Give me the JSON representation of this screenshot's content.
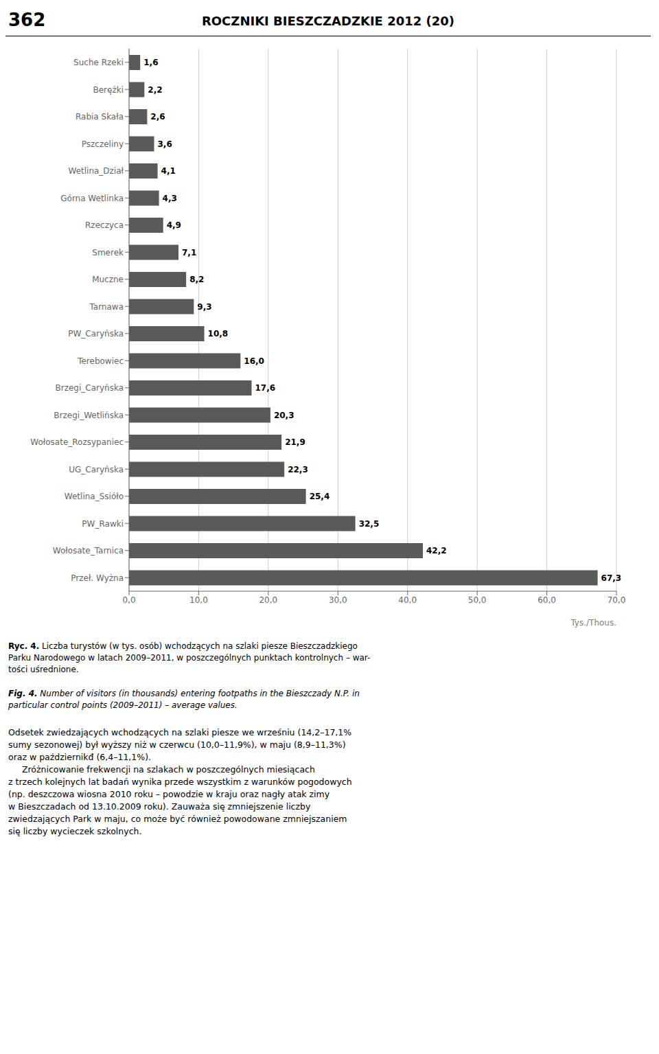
{
  "chart_data": {
    "type": "bar",
    "orientation": "horizontal",
    "title": "ROCZNIKI BIESZCZADZKIE 2012 (20)",
    "categories": [
      "Suche Rzeki",
      "Berężki",
      "Rabia Skała",
      "Pszczeliny",
      "Wetlina_Dział",
      "Górna Wetlinka",
      "Rzeczyca",
      "Smerek",
      "Muczne",
      "Tarnawa",
      "PW_Caryńska",
      "Terebowiec",
      "Brzegi_Caryńska",
      "Brzegi_Wetlińska",
      "Wołosate_Rozsypaniec",
      "UG_Caryńska",
      "Wetlina_Ssióło",
      "PW_Rawki",
      "Wołosate_Tarnica",
      "Przeł. Wyżna"
    ],
    "values": [
      1.6,
      2.2,
      2.6,
      3.6,
      4.1,
      4.3,
      4.9,
      7.1,
      8.2,
      9.3,
      10.8,
      16.0,
      17.6,
      20.3,
      21.9,
      22.3,
      25.4,
      32.5,
      42.2,
      67.3
    ],
    "value_labels": [
      "1,6",
      "2,2",
      "2,6",
      "3,6",
      "4,1",
      "4,3",
      "4,9",
      "7,1",
      "8,2",
      "9,3",
      "10,8",
      "16,0",
      "17,6",
      "20,3",
      "21,9",
      "22,3",
      "25,4",
      "32,5",
      "42,2",
      "67,3"
    ],
    "data_labels": true,
    "color": "#595959",
    "xlim": [
      0,
      70.0
    ],
    "xticks": [
      {
        "value": 0,
        "label": "0,0"
      },
      {
        "value": 10,
        "label": "10,0"
      },
      {
        "value": 20,
        "label": "20,0"
      },
      {
        "value": 30,
        "label": "30,0"
      },
      {
        "value": 40,
        "label": "40,0"
      },
      {
        "value": 50,
        "label": "50,0"
      },
      {
        "value": 60,
        "label": "60,0"
      },
      {
        "value": 70,
        "label": "70,0"
      }
    ],
    "x_label": "Tys./Thous.",
    "grid": true,
    "annotations": [
      "362",
      "Ryc. 4.",
      " Liczba turystów (w tys. osób) wchodzących na szlaki piesze Bieszczadzkiego\nParku Narodowego w latach 2009–2011, w poszczególnych punktach kontrolnych – war-\ntości uśrednione.",
      "Fig. 4.",
      " Number of visitors (in thousands) entering footpaths in the Bieszczady N.P. in\nparticular control points (2009–2011) – average values.",
      "Odsetek zwiedzających wchodzących na szlaki piesze we wrześniu (14,2–17,1%\nsumy sezonowej) był wyższy niż w czerwcu (10,0–11,9%), w maju (8,9–11,3%)\noraz w październikđ (6,4–11,1%).\n     Zróżnicowanie frekwencji na szlakach w poszczególnych miesiącach\nz trzech kolejnych lat badań wynika przede wszystkim z warunków pogodowych\n(np. deszczowa wiosna 2010 roku – powodzie w kraju oraz nagły atak zimy\nw Bieszczadach od 13.10.2009 roku). Zauważa się zmniejszenie liczby\nzwiedzających Park w maju, co może być również powodowane zmniejszaniem\nsię liczby wycieczek szkolnych."
    ]
  }
}
